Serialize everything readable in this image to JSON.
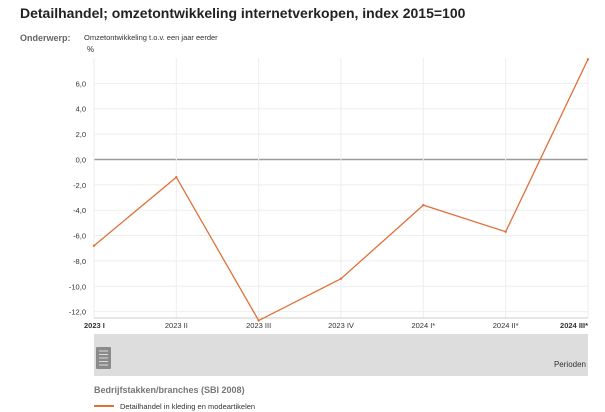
{
  "header": {
    "title": "Detailhandel; omzetontwikkeling internetverkopen, index 2015=100",
    "subject_label": "Onderwerp:",
    "subject_value": "Omzetontwikkeling t.o.v. een jaar eerder"
  },
  "legend": {
    "title": "Bedrijfstakken/branches (SBI 2008)",
    "items": [
      {
        "label": "Detailhandel in kleding en modeartikelen",
        "color": "#e0703a"
      }
    ]
  },
  "colors": {
    "series": "#e0703a",
    "zero_line": "#999999",
    "grid": "#eeeeee",
    "slider_band": "#dddddd"
  },
  "icons": {
    "slider_handle": "grip-icon"
  },
  "chart_data": {
    "type": "line",
    "unit": "%",
    "xlabel": "Perioden",
    "ylabel": "",
    "categories": [
      "2023 I",
      "2023 II",
      "2023 III",
      "2023 IV",
      "2024 I*",
      "2024 II*",
      "2024 III*"
    ],
    "bold_categories": [
      "2023 I",
      "2024 III*"
    ],
    "ylim": [
      -12.5,
      8
    ],
    "yticks": [
      -12,
      -10,
      -8,
      -6,
      -4,
      -2,
      0,
      2,
      4,
      6
    ],
    "ytick_labels": [
      "-12,0",
      "-10,0",
      "-8,0",
      "-6,0",
      "-4,0",
      "-2,0",
      "0,0",
      "2,0",
      "4,0",
      "6,0"
    ],
    "grid": true,
    "series": [
      {
        "name": "Detailhandel in kleding en modeartikelen",
        "values": [
          -6.8,
          -1.4,
          -12.7,
          -9.4,
          -3.6,
          -5.7,
          7.9
        ]
      }
    ]
  }
}
